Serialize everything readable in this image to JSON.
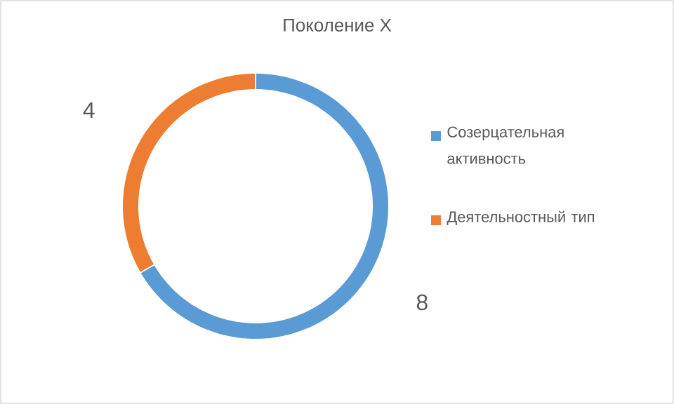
{
  "chart_data": {
    "type": "donut",
    "title": "Поколение X",
    "categories": [
      "Созерцательная активность",
      "Деятельностный тип"
    ],
    "values": [
      8,
      4
    ],
    "colors": [
      "#5b9bd5",
      "#ed7d31"
    ],
    "data_labels": true,
    "legend": "right"
  }
}
